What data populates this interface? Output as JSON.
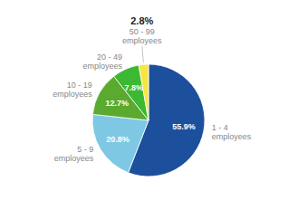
{
  "chart_data": {
    "type": "pie",
    "categories": [
      "1 - 4\nemployees",
      "5 - 9\nemployees",
      "10 - 19\nemployees",
      "20 - 49\nemployees",
      "50 - 99\nemployees"
    ],
    "values": [
      55.9,
      20.8,
      12.7,
      7.8,
      2.8
    ],
    "value_labels": [
      "55.9%",
      "20.8%",
      "12.7%",
      "7.8%",
      "2.8%"
    ],
    "colors": [
      "#1c4f9c",
      "#7ec8e3",
      "#5aaa30",
      "#3db832",
      "#f5e642"
    ],
    "data_labels": true
  }
}
